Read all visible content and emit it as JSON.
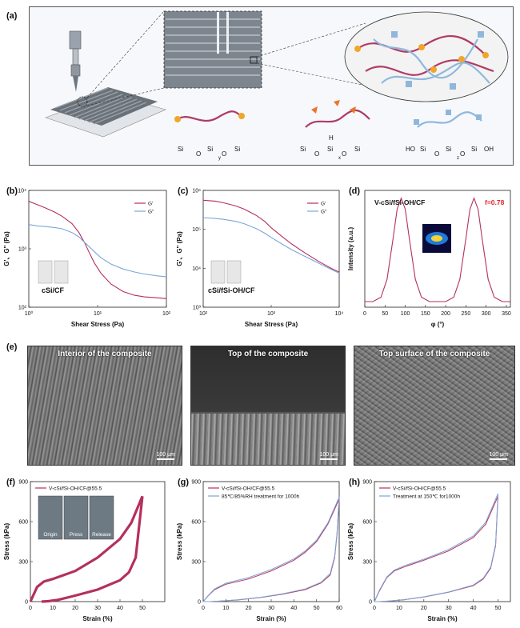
{
  "panel_labels": [
    "(a)",
    "(b)",
    "(c)",
    "(d)",
    "(e)",
    "(f)",
    "(g)",
    "(h)"
  ],
  "panel_a": {
    "formula1": [
      "Si",
      "O",
      "Si",
      "O",
      "Si",
      "y"
    ],
    "formula2": [
      "Si",
      "O",
      "Si",
      "O",
      "Si",
      "H",
      "x"
    ],
    "formula3": [
      "HO",
      "Si",
      "O",
      "Si",
      "O",
      "Si",
      "OH",
      "z"
    ]
  },
  "chart_data": [
    {
      "id": "b",
      "type": "line",
      "xscale": "log",
      "yscale": "log",
      "xlabel": "Shear Stress (Pa)",
      "ylabel": "G'、G'' (Pa)",
      "xlim": [
        1,
        300
      ],
      "ylim": [
        100,
        10000
      ],
      "xticks": [
        "10⁰",
        "10¹",
        "10²"
      ],
      "yticks": [
        "10²",
        "10³",
        "10⁴"
      ],
      "inset_label": "cSi/CF",
      "series": [
        {
          "name": "G'",
          "color": "#b5305c",
          "x": [
            1,
            1.5,
            2,
            3,
            4,
            6,
            8,
            10,
            12,
            15,
            20,
            30,
            50,
            80,
            120,
            200,
            300
          ],
          "y": [
            6500,
            5600,
            5000,
            4200,
            3600,
            2700,
            1900,
            1300,
            900,
            580,
            380,
            250,
            185,
            160,
            150,
            145,
            140
          ]
        },
        {
          "name": "G''",
          "color": "#7aa7d9",
          "x": [
            1,
            1.5,
            2,
            3,
            4,
            6,
            8,
            10,
            15,
            20,
            30,
            50,
            80,
            120,
            200,
            300
          ],
          "y": [
            2600,
            2450,
            2400,
            2300,
            2200,
            1900,
            1600,
            1300,
            900,
            700,
            550,
            450,
            400,
            370,
            345,
            330
          ]
        }
      ]
    },
    {
      "id": "c",
      "type": "line",
      "xscale": "log",
      "yscale": "log",
      "xlabel": "Shear Stress (Pa)",
      "ylabel": "G'、G'' (Pa)",
      "xlim": [
        100,
        10000
      ],
      "ylim": [
        1000,
        1000000
      ],
      "xticks": [
        "10²",
        "10³",
        "10⁴"
      ],
      "yticks": [
        "10³",
        "10⁴",
        "10⁵",
        "10⁶"
      ],
      "inset_label": "cSi/fSi-OH/CF",
      "series": [
        {
          "name": "G'",
          "color": "#b5305c",
          "x": [
            100,
            150,
            200,
            300,
            400,
            600,
            800,
            1000,
            1500,
            2000,
            3000,
            5000,
            8000,
            10000
          ],
          "y": [
            560000,
            530000,
            480000,
            400000,
            330000,
            230000,
            160000,
            110000,
            62000,
            42000,
            26000,
            15000,
            9500,
            8000
          ]
        },
        {
          "name": "G''",
          "color": "#7aa7d9",
          "x": [
            100,
            150,
            200,
            300,
            400,
            600,
            800,
            1000,
            1500,
            2000,
            3000,
            5000,
            8000,
            10000
          ],
          "y": [
            200000,
            190000,
            180000,
            160000,
            140000,
            105000,
            80000,
            62000,
            40000,
            30000,
            21000,
            13500,
            9000,
            7500
          ]
        }
      ]
    },
    {
      "id": "d",
      "type": "line",
      "title": "V-cSi/fSi-OH/CF",
      "annotation": "f=0.78",
      "xlabel": "φ (°)",
      "ylabel": "Intensity (a.u.)",
      "xlim": [
        0,
        360
      ],
      "xticks": [
        "0",
        "50",
        "100",
        "150",
        "200",
        "250",
        "300",
        "350"
      ],
      "series": [
        {
          "name": "",
          "color": "#b5305c",
          "x": [
            0,
            20,
            40,
            55,
            70,
            80,
            90,
            100,
            110,
            125,
            140,
            160,
            180,
            200,
            220,
            235,
            250,
            260,
            270,
            280,
            290,
            305,
            320,
            340,
            360
          ],
          "y": [
            0.05,
            0.05,
            0.09,
            0.25,
            0.62,
            0.88,
            0.98,
            0.88,
            0.62,
            0.25,
            0.09,
            0.05,
            0.05,
            0.05,
            0.09,
            0.25,
            0.62,
            0.88,
            0.98,
            0.88,
            0.62,
            0.25,
            0.09,
            0.05,
            0.05
          ]
        }
      ]
    },
    {
      "id": "f",
      "type": "line",
      "subtype": "hysteresis",
      "xlabel": "Strain (%)",
      "ylabel": "Stress (kPa)",
      "xlim": [
        0,
        60
      ],
      "ylim": [
        0,
        900
      ],
      "xticks": [
        "0",
        "10",
        "20",
        "30",
        "40",
        "50"
      ],
      "yticks": [
        "0",
        "300",
        "600",
        "900"
      ],
      "legend": [
        "V-cSi/fSi-OH/CF@55.5"
      ],
      "inset_labels": [
        "Origin",
        "Press",
        "Release"
      ],
      "series": [
        {
          "name": "V-cSi/fSi-OH/CF@55.5",
          "color": "#b5305c",
          "loading_x": [
            0,
            3,
            6,
            10,
            20,
            30,
            40,
            45,
            50
          ],
          "loading_y": [
            0,
            110,
            150,
            170,
            230,
            330,
            470,
            590,
            790
          ],
          "unloading_x": [
            50,
            47,
            44,
            40,
            30,
            20,
            12,
            8,
            5
          ],
          "unloading_y": [
            790,
            330,
            220,
            160,
            90,
            45,
            12,
            3,
            0
          ]
        }
      ]
    },
    {
      "id": "g",
      "type": "line",
      "subtype": "hysteresis",
      "xlabel": "Strain (%)",
      "ylabel": "Stress (kPa)",
      "xlim": [
        0,
        60
      ],
      "ylim": [
        0,
        900
      ],
      "xticks": [
        "0",
        "10",
        "20",
        "30",
        "40",
        "50",
        "60"
      ],
      "yticks": [
        "0",
        "300",
        "600",
        "900"
      ],
      "legend": [
        "V-cSi/fSi-OH/CF@55.5",
        "85℃/85%RH treatment for 1000h"
      ],
      "series": [
        {
          "name": "V-cSi/fSi-OH/CF@55.5",
          "color": "#b5305c",
          "loading_x": [
            0,
            2,
            5,
            10,
            20,
            30,
            40,
            45,
            50,
            55,
            60
          ],
          "loading_y": [
            0,
            40,
            90,
            130,
            170,
            230,
            310,
            370,
            450,
            580,
            770
          ],
          "unloading_x": [
            60,
            59,
            58,
            56,
            52,
            45,
            35,
            25,
            15,
            8,
            3,
            0
          ],
          "unloading_y": [
            770,
            500,
            330,
            200,
            140,
            90,
            55,
            30,
            12,
            4,
            0,
            0
          ]
        },
        {
          "name": "85℃/85%RH treatment for 1000h",
          "color": "#7aa7d9",
          "loading_x": [
            0,
            2,
            5,
            10,
            20,
            30,
            40,
            45,
            50,
            55,
            60
          ],
          "loading_y": [
            0,
            42,
            95,
            138,
            180,
            240,
            320,
            380,
            460,
            590,
            785
          ],
          "unloading_x": [
            60,
            59,
            58,
            56,
            52,
            45,
            35,
            25,
            15,
            8,
            3,
            0
          ],
          "unloading_y": [
            785,
            510,
            340,
            210,
            145,
            95,
            58,
            32,
            13,
            4,
            0,
            0
          ]
        }
      ]
    },
    {
      "id": "h",
      "type": "line",
      "subtype": "hysteresis",
      "xlabel": "Strain (%)",
      "ylabel": "Stress (kPa)",
      "xlim": [
        0,
        55
      ],
      "ylim": [
        0,
        900
      ],
      "xticks": [
        "0",
        "10",
        "20",
        "30",
        "40",
        "50"
      ],
      "yticks": [
        "0",
        "300",
        "600",
        "900"
      ],
      "legend": [
        "V-cSi/fSi-OH/CF@55.5",
        "Treatment at 150℃ for1000h"
      ],
      "series": [
        {
          "name": "V-cSi/fSi-OH/CF@55.5",
          "color": "#b5305c",
          "loading_x": [
            0,
            2,
            5,
            8,
            12,
            20,
            30,
            40,
            45,
            50
          ],
          "loading_y": [
            0,
            80,
            180,
            230,
            260,
            310,
            380,
            480,
            580,
            790
          ],
          "unloading_x": [
            50,
            49,
            47,
            44,
            40,
            30,
            20,
            12,
            6,
            2,
            0
          ],
          "unloading_y": [
            790,
            420,
            250,
            170,
            120,
            70,
            35,
            14,
            4,
            0,
            0
          ]
        },
        {
          "name": "Treatment at 150℃ for1000h",
          "color": "#7aa7d9",
          "loading_x": [
            0,
            2,
            5,
            8,
            12,
            20,
            30,
            40,
            45,
            50
          ],
          "loading_y": [
            0,
            85,
            185,
            236,
            268,
            318,
            390,
            492,
            595,
            810
          ],
          "unloading_x": [
            50,
            49,
            47,
            44,
            40,
            30,
            20,
            12,
            6,
            2,
            0
          ],
          "unloading_y": [
            810,
            430,
            258,
            175,
            124,
            72,
            36,
            15,
            4,
            0,
            0
          ]
        }
      ]
    }
  ],
  "panel_e": {
    "titles": [
      "Interior of the composite",
      "Top of the composite",
      "Top surface of the composite"
    ],
    "scalebar": "100 μm"
  }
}
